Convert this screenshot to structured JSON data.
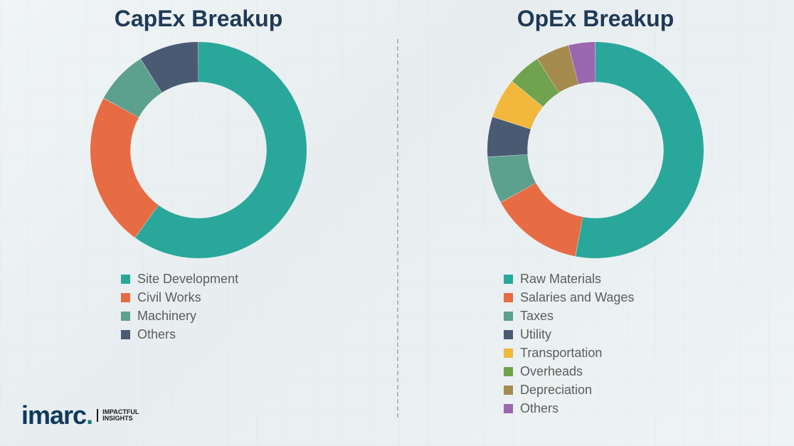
{
  "background_color": "#eef3f4",
  "title_color": "#1f3a57",
  "legend_text_color": "#5c5c5c",
  "divider_color": "#8a949c",
  "capex": {
    "title": "CapEx Breakup",
    "type": "donut",
    "inner_radius_pct": 63,
    "start_angle_deg": 0,
    "segments": [
      {
        "label": "Site Development",
        "value": 60,
        "color": "#2aa79b"
      },
      {
        "label": "Civil Works",
        "value": 23,
        "color": "#e76b43"
      },
      {
        "label": "Machinery",
        "value": 8,
        "color": "#5ca08e"
      },
      {
        "label": "Others",
        "value": 9,
        "color": "#4a5a73"
      }
    ]
  },
  "opex": {
    "title": "OpEx Breakup",
    "type": "donut",
    "inner_radius_pct": 63,
    "start_angle_deg": 0,
    "segments": [
      {
        "label": "Raw Materials",
        "value": 53,
        "color": "#2aa79b"
      },
      {
        "label": "Salaries and Wages",
        "value": 14,
        "color": "#e76b43"
      },
      {
        "label": "Taxes",
        "value": 7,
        "color": "#5ca08e"
      },
      {
        "label": "Utility",
        "value": 6,
        "color": "#4a5a73"
      },
      {
        "label": "Transportation",
        "value": 6,
        "color": "#f2b73d"
      },
      {
        "label": "Overheads",
        "value": 5,
        "color": "#6fa34d"
      },
      {
        "label": "Depreciation",
        "value": 5,
        "color": "#a68b4e"
      },
      {
        "label": "Others",
        "value": 4,
        "color": "#9b66b0"
      }
    ]
  },
  "logo": {
    "brand": "imarc",
    "tagline_line1": "IMPACTFUL",
    "tagline_line2": "INSIGHTS",
    "brand_color": "#0f3a5e",
    "accent_color": "#137a74"
  }
}
